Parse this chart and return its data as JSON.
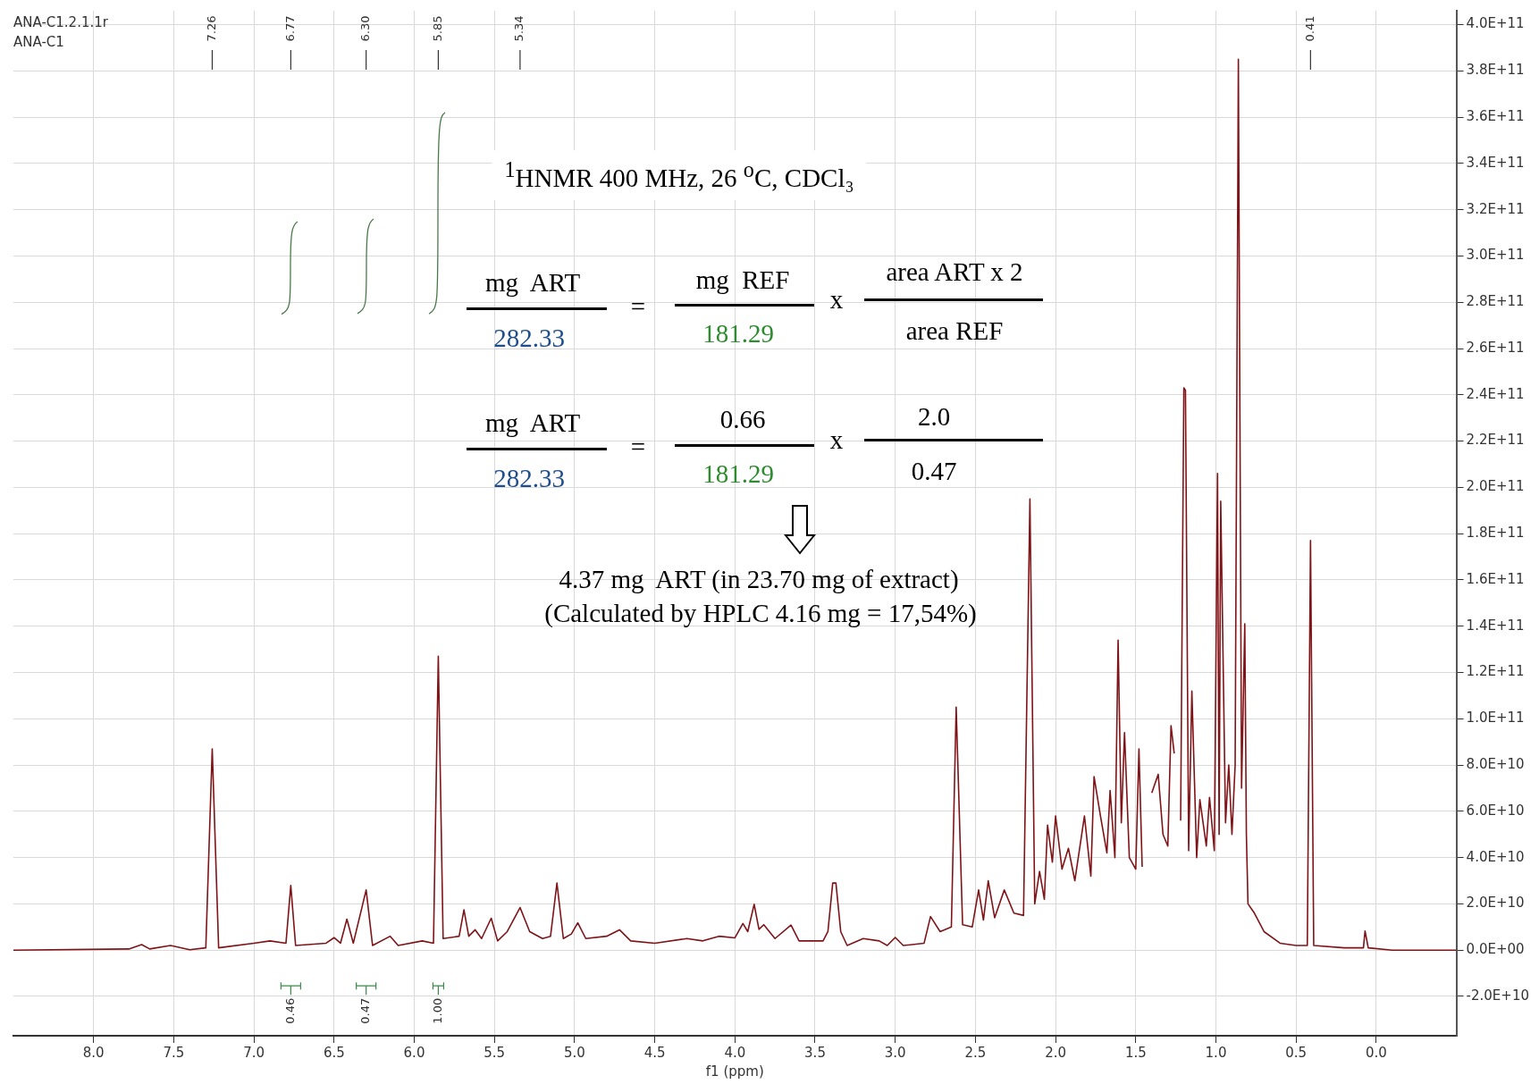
{
  "chart_data": {
    "type": "line",
    "xlabel": "f1 (ppm)",
    "grid": true,
    "legend": false,
    "marker": "none",
    "line_style": "solid",
    "xlim": [
      8.5,
      -0.5
    ],
    "xticks": [
      {
        "value": 8,
        "label": "8.0"
      },
      {
        "value": 7.5,
        "label": "7.5"
      },
      {
        "value": 7,
        "label": "7.0"
      },
      {
        "value": 6.5,
        "label": "6.5"
      },
      {
        "value": 6,
        "label": "6.0"
      },
      {
        "value": 5.5,
        "label": "5.5"
      },
      {
        "value": 5,
        "label": "5.0"
      },
      {
        "value": 4.5,
        "label": "4.5"
      },
      {
        "value": 4,
        "label": "4.0"
      },
      {
        "value": 3.5,
        "label": "3.5"
      },
      {
        "value": 3,
        "label": "3.0"
      },
      {
        "value": 2.5,
        "label": "2.5"
      },
      {
        "value": 2,
        "label": "2.0"
      },
      {
        "value": 1.5,
        "label": "1.5"
      },
      {
        "value": 1,
        "label": "1.0"
      },
      {
        "value": 0.5,
        "label": "0.5"
      },
      {
        "value": 0,
        "label": "0.0"
      }
    ],
    "ylim": [
      -37000000000.0,
      406000000000.0
    ],
    "yticks": [
      {
        "value": -20000000000.0,
        "label": "-2.0E+10"
      },
      {
        "value": 0,
        "label": "0.0E+00"
      },
      {
        "value": 20000000000.0,
        "label": "2.0E+10"
      },
      {
        "value": 40000000000.0,
        "label": "4.0E+10"
      },
      {
        "value": 60000000000.0,
        "label": "6.0E+10"
      },
      {
        "value": 80000000000.0,
        "label": "8.0E+10"
      },
      {
        "value": 100000000000.0,
        "label": "1.0E+11"
      },
      {
        "value": 120000000000.0,
        "label": "1.2E+11"
      },
      {
        "value": 140000000000.0,
        "label": "1.4E+11"
      },
      {
        "value": 160000000000.0,
        "label": "1.6E+11"
      },
      {
        "value": 180000000000.0,
        "label": "1.8E+11"
      },
      {
        "value": 200000000000.0,
        "label": "2.0E+11"
      },
      {
        "value": 220000000000.0,
        "label": "2.2E+11"
      },
      {
        "value": 240000000000.0,
        "label": "2.4E+11"
      },
      {
        "value": 260000000000.0,
        "label": "2.6E+11"
      },
      {
        "value": 280000000000.0,
        "label": "2.8E+11"
      },
      {
        "value": 300000000000.0,
        "label": "3.0E+11"
      },
      {
        "value": 320000000000.0,
        "label": "3.2E+11"
      },
      {
        "value": 340000000000.0,
        "label": "3.4E+11"
      },
      {
        "value": 360000000000.0,
        "label": "3.6E+11"
      },
      {
        "value": 380000000000.0,
        "label": "3.8E+11"
      },
      {
        "value": 400000000000.0,
        "label": "4.0E+11"
      }
    ],
    "series": [
      {
        "color": "#7f1418",
        "x": [
          8.5,
          7.78,
          7.7,
          7.65,
          7.52,
          7.4,
          7.3,
          7.26,
          7.22,
          7.0,
          6.9,
          6.8,
          6.77,
          6.74,
          6.55,
          6.5,
          6.46,
          6.42,
          6.38,
          6.3,
          6.26,
          6.15,
          6.1,
          5.95,
          5.88,
          5.85,
          5.82,
          5.72,
          5.69,
          5.66,
          5.62,
          5.58,
          5.52,
          5.48,
          5.42,
          5.34,
          5.28,
          5.2,
          5.15,
          5.11,
          5.07,
          5.02,
          4.98,
          4.93,
          4.8,
          4.72,
          4.65,
          4.5,
          4.3,
          4.2,
          4.1,
          4.0,
          3.95,
          3.92,
          3.88,
          3.85,
          3.82,
          3.75,
          3.65,
          3.6,
          3.45,
          3.42,
          3.39,
          3.37,
          3.34,
          3.3,
          3.2,
          3.1,
          3.05,
          3.0,
          2.95,
          2.82,
          2.78,
          2.72,
          2.65,
          2.62,
          2.58,
          2.52,
          2.48,
          2.45,
          2.42,
          2.38,
          2.32,
          2.26,
          2.2,
          2.16,
          2.13,
          2.1,
          2.07,
          2.05,
          2.02,
          2.0,
          1.96,
          1.92,
          1.88,
          1.82,
          1.78,
          1.76,
          1.72,
          1.68,
          1.66,
          1.63,
          1.61,
          1.59,
          1.57,
          1.54,
          1.5,
          1.48,
          1.46,
          1.43,
          1.4,
          1.36,
          1.33,
          1.3,
          1.28,
          1.26,
          1.24,
          1.22,
          1.2,
          1.19,
          1.17,
          1.15,
          1.12,
          1.1,
          1.06,
          1.04,
          1.01,
          0.99,
          0.98,
          0.97,
          0.94,
          0.92,
          0.9,
          0.88,
          0.86,
          0.84,
          0.82,
          0.81,
          0.8,
          0.76,
          0.7,
          0.6,
          0.5,
          0.43,
          0.41,
          0.39,
          0.2,
          0.08,
          0.07,
          0.05,
          -0.1,
          -0.5
        ],
        "values": [
          0,
          500000000.0,
          2400000000.0,
          500000000.0,
          2000000000.0,
          200000000.0,
          1000000000.0,
          87000000000.0,
          1000000000.0,
          3000000000.0,
          4000000000.0,
          3000000000.0,
          28000000000.0,
          2000000000.0,
          3000000000.0,
          5400000000.0,
          3000000000.0,
          13400000000.0,
          3000000000.0,
          26000000000.0,
          2000000000.0,
          6000000000.0,
          2000000000.0,
          4000000000.0,
          3000000000.0,
          127000000000.0,
          5000000000.0,
          6000000000.0,
          17400000000.0,
          6000000000.0,
          8800000000.0,
          5000000000.0,
          13800000000.0,
          4000000000.0,
          8000000000.0,
          18400000000.0,
          8000000000.0,
          5000000000.0,
          6000000000.0,
          29000000000.0,
          5000000000.0,
          7000000000.0,
          11800000000.0,
          5000000000.0,
          6000000000.0,
          8800000000.0,
          4000000000.0,
          3000000000.0,
          5000000000.0,
          4000000000.0,
          6000000000.0,
          5300000000.0,
          11500000000.0,
          8000000000.0,
          19800000000.0,
          9000000000.0,
          11000000000.0,
          5000000000.0,
          10800000000.0,
          4000000000.0,
          4000000000.0,
          8000000000.0,
          29000000000.0,
          29000000000.0,
          8000000000.0,
          2000000000.0,
          5000000000.0,
          4000000000.0,
          2000000000.0,
          5500000000.0,
          2000000000.0,
          3000000000.0,
          14500000000.0,
          8000000000.0,
          10000000000.0,
          105000000000.0,
          11000000000.0,
          10000000000.0,
          26000000000.0,
          13000000000.0,
          30000000000.0,
          14000000000.0,
          26000000000.0,
          16000000000.0,
          15000000000.0,
          195000000000.0,
          20000000000.0,
          34000000000.0,
          22000000000.0,
          54000000000.0,
          38000000000.0,
          58000000000.0,
          35000000000.0,
          44000000000.0,
          30000000000.0,
          58000000000.0,
          32000000000.0,
          75000000000.0,
          58000000000.0,
          42000000000.0,
          69000000000.0,
          40000000000.0,
          134000000000.0,
          55000000000.0,
          94000000000.0,
          40000000000.0,
          35000000000.0,
          87000000000.0,
          36000000000.0,
          null,
          68000000000.0,
          76000000000.0,
          50000000000.0,
          45000000000.0,
          97000000000.0,
          85000000000.0,
          null,
          56000000000.0,
          243000000000.0,
          242000000000.0,
          43000000000.0,
          112000000000.0,
          40000000000.0,
          65000000000.0,
          45000000000.0,
          66000000000.0,
          43000000000.0,
          206000000000.0,
          50000000000.0,
          194000000000.0,
          55000000000.0,
          80000000000.0,
          50000000000.0,
          80000000000.0,
          385000000000.0,
          70000000000.0,
          141000000000.0,
          50000000000.0,
          20000000000.0,
          16000000000.0,
          8000000000.0,
          3000000000.0,
          2000000000.0,
          2000000000.0,
          177000000000.0,
          2000000000.0,
          1000000000.0,
          1000000000.0,
          8300000000.0,
          1000000000.0,
          0,
          0
        ]
      }
    ],
    "annotations": [
      "ANA-C1.2.1.1r",
      "ANA-C1",
      "7.26",
      "6.77",
      "6.30",
      "5.85",
      "5.34",
      "0.41",
      "0.46",
      "0.47",
      "1.00",
      "$^{1}$HNMR 400 MHz, 26 $^{o}$C, CDCl₃",
      "mg  ART",
      "282.33",
      "=",
      "mg  REF",
      "181.29",
      "x",
      "area ART x 2",
      "area REF",
      "mg  ART",
      "282.33",
      "=",
      "0.66",
      "181.29",
      "x",
      "2.0",
      "0.47",
      "4.37 mg  ART (in 23.70 mg of extract)",
      "(Calculated by HPLC 4.16 mg = 17,54%)"
    ]
  }
}
